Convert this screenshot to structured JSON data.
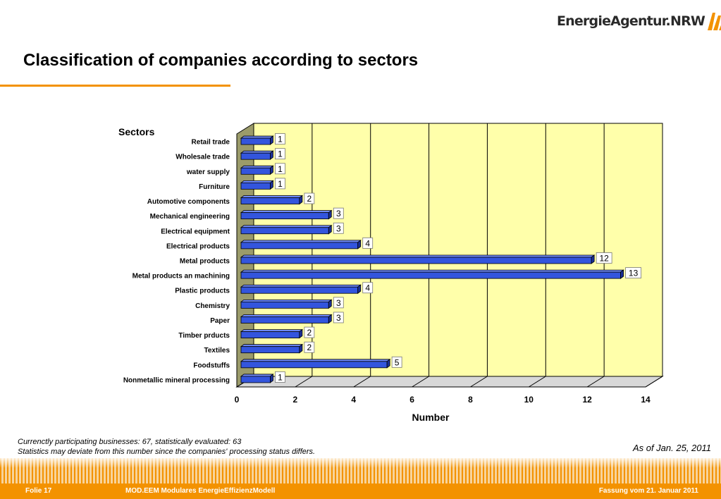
{
  "logo": {
    "text": "EnergieAgentur.NRW"
  },
  "header": {
    "title": "Classification of companies according to sectors"
  },
  "chart_data": {
    "type": "bar",
    "orientation": "horizontal",
    "style": "3d",
    "categories": [
      "Retail trade",
      "Wholesale trade",
      "water supply",
      "Furniture",
      "Automotive components",
      "Mechanical engineering",
      "Electrical equipment",
      "Electrical products",
      "Metal products",
      "Metal products an machining",
      "Plastic products",
      "Chemistry",
      "Paper",
      "Timber prducts",
      "Textiles",
      "Foodstuffs",
      "Nonmetallic mineral processing"
    ],
    "values": [
      1,
      1,
      1,
      1,
      2,
      3,
      3,
      4,
      12,
      13,
      4,
      3,
      3,
      2,
      2,
      5,
      1
    ],
    "ylabel": "Sectors",
    "xlabel": "Number",
    "xlim": [
      0,
      14
    ],
    "xticks": [
      0,
      2,
      4,
      6,
      8,
      10,
      12,
      14
    ],
    "data_labels": true,
    "grid": "vertical",
    "colors": {
      "bar": "#3355dd",
      "bar_dark": "#1a2f99",
      "plot_bg": "#ffffaa",
      "side_wall": "#9b9b6a",
      "floor": "#d8d8d8"
    }
  },
  "footnote": {
    "line1": "Currenctly participating businesses: 67, statistically evaluated: 63",
    "line2": "Statistics may deviate from this number since the companies' processing status differs."
  },
  "as_of": "As of Jan. 25, 2011",
  "footer": {
    "slide": "Folie 17",
    "model": "MOD.EEM Modulares EnergieEffizienzModell",
    "version": "Fassung vom 21. Januar 2011"
  },
  "colors": {
    "accent": "#f39200"
  }
}
